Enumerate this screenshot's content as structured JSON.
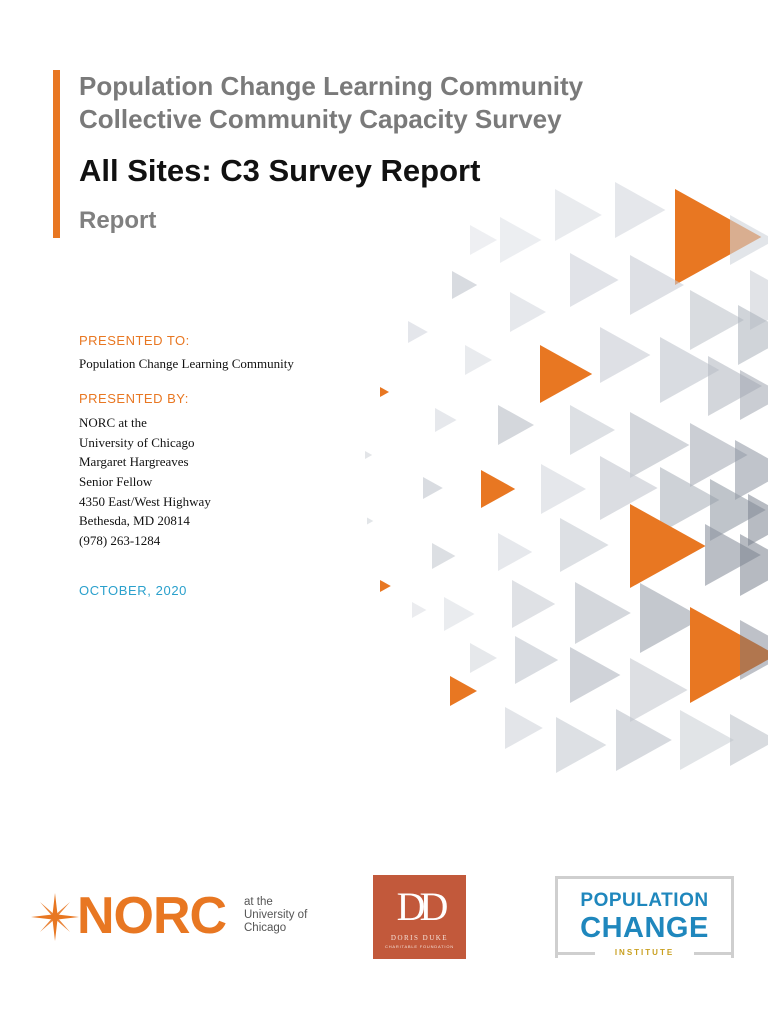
{
  "header": {
    "line1": "Population Change Learning Community",
    "line2": "Collective Community Capacity Survey",
    "main_title": "All Sites: C3 Survey Report",
    "subtitle": "Report",
    "accent_color": "#e87722"
  },
  "presented_to": {
    "label": "PRESENTED TO:",
    "value": "Population Change Learning Community"
  },
  "presented_by": {
    "label": "PRESENTED BY:",
    "lines": [
      "NORC at the",
      "University of Chicago",
      "Margaret Hargreaves",
      "Senior Fellow",
      "4350 East/West Highway",
      "Bethesda, MD  20814",
      "(978) 263-1284"
    ]
  },
  "date": "OCTOBER, 2020",
  "logos": {
    "norc": {
      "word": "NORC",
      "sub": [
        "at the",
        "University of",
        "Chicago"
      ],
      "icon": "norc-star-icon"
    },
    "doris_duke": {
      "monogram": "DD",
      "name": "DORIS DUKE",
      "sub": "CHARITABLE FOUNDATION"
    },
    "pci": {
      "line1": "POPULATION",
      "line2": "CHANGE",
      "line3": "INSTITUTE"
    }
  }
}
